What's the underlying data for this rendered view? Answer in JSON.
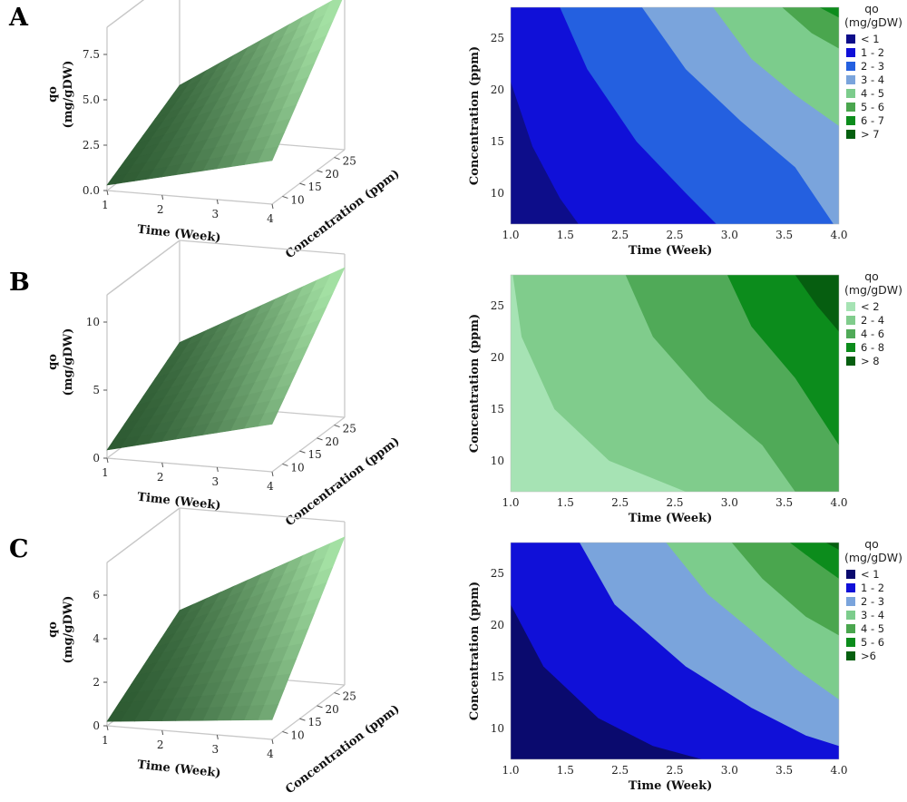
{
  "panels": [
    {
      "letter": "A",
      "zlabel_line1": "qo",
      "zlabel_line2": "(mg/gDW)",
      "xlabel": "Time (Week)",
      "ylabel": "Concentration (ppm)"
    },
    {
      "letter": "B",
      "zlabel_line1": "qo",
      "zlabel_line2": "(mg/gDW)",
      "xlabel": "Time (Week)",
      "ylabel": "Concentration (ppm)"
    },
    {
      "letter": "C",
      "zlabel_line1": "qo",
      "zlabel_line2": "(mg/gDW)",
      "xlabel": "Time (Week)",
      "ylabel": "Concentration (ppm)"
    }
  ],
  "colors": {
    "surface_dark": "#2d5a32",
    "surface_light": "#a3e0a3",
    "box": "#c8c8c8"
  },
  "chart_data": [
    {
      "type": "surface",
      "panel": "A",
      "xlabel": "Time (Week)",
      "ylabel": "Concentration (ppm)",
      "zlabel": "qo (mg/gDW)",
      "x_ticks": [
        "1",
        "2",
        "3",
        "4"
      ],
      "y_ticks": [
        "10",
        "15",
        "20",
        "25"
      ],
      "z_ticks": [
        "0.0",
        "2.5",
        "5.0",
        "7.5"
      ],
      "xlim": [
        1,
        4
      ],
      "ylim": [
        7,
        28
      ],
      "zlim": [
        0,
        9
      ],
      "corners": {
        "x1_y7": 0.3,
        "x4_y7": 2.4,
        "x1_y28": 2.8,
        "x4_y28": 8.6
      }
    },
    {
      "type": "contour",
      "panel": "A",
      "xlabel": "Time (Week)",
      "ylabel": "Concentration (ppm)",
      "legend_title": [
        "qo",
        "(mg/gDW)"
      ],
      "x_ticks": [
        "1.0",
        "1.5",
        "2.5",
        "2.5",
        "3.0",
        "3.5",
        "4.0"
      ],
      "y_ticks": [
        "10",
        "15",
        "20",
        "25"
      ],
      "xlim": [
        1,
        4
      ],
      "ylim": [
        7,
        28
      ],
      "levels": [
        {
          "label": "< 1",
          "color": "#0d0d8a"
        },
        {
          "label": "1 - 2",
          "color": "#1010d8"
        },
        {
          "label": "2 - 3",
          "color": "#2460e0"
        },
        {
          "label": "3 - 4",
          "color": "#7aa4dc"
        },
        {
          "label": "4 - 5",
          "color": "#7ccc8c"
        },
        {
          "label": "5 - 6",
          "color": "#4aa64e"
        },
        {
          "label": "6 - 7",
          "color": "#0c8c1c"
        },
        {
          "label": "> 7",
          "color": "#066010"
        }
      ],
      "boundaries": [
        [
          [
            1.0,
            20.8
          ],
          [
            1.2,
            14.5
          ],
          [
            1.45,
            9.5
          ],
          [
            1.62,
            7.0
          ]
        ],
        [
          [
            1.45,
            28
          ],
          [
            1.7,
            22
          ],
          [
            2.15,
            15
          ],
          [
            2.6,
            10
          ],
          [
            2.88,
            7.0
          ]
        ],
        [
          [
            2.2,
            28
          ],
          [
            2.6,
            22
          ],
          [
            3.1,
            17
          ],
          [
            3.6,
            12.5
          ],
          [
            3.95,
            7.0
          ]
        ],
        [
          [
            2.85,
            28
          ],
          [
            3.2,
            23
          ],
          [
            3.6,
            19.5
          ],
          [
            4.0,
            16.5
          ]
        ],
        [
          [
            3.48,
            28
          ],
          [
            3.75,
            25.5
          ],
          [
            4.0,
            24.0
          ]
        ],
        [
          [
            3.82,
            28
          ],
          [
            4.0,
            27.0
          ]
        ]
      ]
    },
    {
      "type": "surface",
      "panel": "B",
      "xlabel": "Time (Week)",
      "ylabel": "Concentration (ppm)",
      "zlabel": "qo (mg/gDW)",
      "x_ticks": [
        "1",
        "2",
        "3",
        "4"
      ],
      "y_ticks": [
        "10",
        "15",
        "20",
        "25"
      ],
      "z_ticks": [
        "0",
        "5",
        "10"
      ],
      "xlim": [
        1,
        4
      ],
      "ylim": [
        7,
        28
      ],
      "zlim": [
        0,
        12
      ],
      "corners": {
        "x1_y7": 0.6,
        "x4_y7": 3.5,
        "x1_y28": 4.5,
        "x4_y28": 11.0
      }
    },
    {
      "type": "contour",
      "panel": "B",
      "xlabel": "Time (Week)",
      "ylabel": "Concentration (ppm)",
      "legend_title": [
        "qo",
        "(mg/gDW)"
      ],
      "x_ticks": [
        "1.0",
        "1.5",
        "2.5",
        "2.5",
        "3.0",
        "3.5",
        "4.0"
      ],
      "y_ticks": [
        "10",
        "15",
        "20",
        "25"
      ],
      "xlim": [
        1,
        4
      ],
      "ylim": [
        7,
        28
      ],
      "levels": [
        {
          "label": "< 2",
          "color": "#a6e3b4"
        },
        {
          "label": "2 - 4",
          "color": "#80cc8c"
        },
        {
          "label": "4 - 6",
          "color": "#50aa58"
        },
        {
          "label": "6 - 8",
          "color": "#0c8c1c"
        },
        {
          "label": "> 8",
          "color": "#065e10"
        }
      ],
      "boundaries": [
        [
          [
            1.02,
            28
          ],
          [
            1.1,
            22
          ],
          [
            1.4,
            15
          ],
          [
            1.9,
            10
          ],
          [
            2.6,
            7.0
          ]
        ],
        [
          [
            2.05,
            28
          ],
          [
            2.3,
            22
          ],
          [
            2.8,
            16
          ],
          [
            3.3,
            11.5
          ],
          [
            3.6,
            7.0
          ]
        ],
        [
          [
            2.98,
            28
          ],
          [
            3.2,
            23
          ],
          [
            3.6,
            18
          ],
          [
            4.0,
            11.5
          ]
        ],
        [
          [
            3.6,
            28
          ],
          [
            3.8,
            25
          ],
          [
            4.0,
            22.5
          ]
        ]
      ]
    },
    {
      "type": "surface",
      "panel": "C",
      "xlabel": "Time (Week)",
      "ylabel": "Concentration (ppm)",
      "zlabel": "qo (mg/gDW)",
      "x_ticks": [
        "1",
        "2",
        "3",
        "4"
      ],
      "y_ticks": [
        "10",
        "15",
        "20",
        "25"
      ],
      "z_ticks": [
        "0",
        "2",
        "4",
        "6"
      ],
      "xlim": [
        1,
        4
      ],
      "ylim": [
        7,
        28
      ],
      "zlim": [
        0,
        7.5
      ],
      "corners": {
        "x1_y7": 0.2,
        "x4_y7": 0.9,
        "x1_y28": 2.8,
        "x4_y28": 6.8
      }
    },
    {
      "type": "contour",
      "panel": "C",
      "xlabel": "Time (Week)",
      "ylabel": "Concentration (ppm)",
      "legend_title": [
        "qo",
        "(mg/gDW)"
      ],
      "x_ticks": [
        "1.0",
        "1.5",
        "2.5",
        "2.5",
        "3.0",
        "3.5",
        "4.0"
      ],
      "y_ticks": [
        "10",
        "15",
        "20",
        "25"
      ],
      "xlim": [
        1,
        4
      ],
      "ylim": [
        7,
        28
      ],
      "levels": [
        {
          "label": "< 1",
          "color": "#0a0a6e"
        },
        {
          "label": "1 - 2",
          "color": "#1010d8"
        },
        {
          "label": "2 - 3",
          "color": "#7aa4dc"
        },
        {
          "label": "3 - 4",
          "color": "#7ccc8c"
        },
        {
          "label": "4 - 5",
          "color": "#4aa64e"
        },
        {
          "label": "5 - 6",
          "color": "#0c8c1c"
        },
        {
          "label": ">6",
          "color": "#066010"
        }
      ],
      "boundaries": [
        [
          [
            1.0,
            22
          ],
          [
            1.3,
            16
          ],
          [
            1.8,
            11
          ],
          [
            2.3,
            8.3
          ],
          [
            2.75,
            7.0
          ]
        ],
        [
          [
            1.63,
            28
          ],
          [
            1.95,
            22
          ],
          [
            2.6,
            16
          ],
          [
            3.2,
            12
          ],
          [
            3.7,
            9.3
          ],
          [
            4.0,
            8.3
          ]
        ],
        [
          [
            2.42,
            28
          ],
          [
            2.8,
            23
          ],
          [
            3.2,
            19.5
          ],
          [
            3.6,
            15.8
          ],
          [
            4.0,
            12.8
          ]
        ],
        [
          [
            3.02,
            28
          ],
          [
            3.3,
            24.5
          ],
          [
            3.7,
            20.8
          ],
          [
            4.0,
            19.0
          ]
        ],
        [
          [
            3.55,
            28
          ],
          [
            3.8,
            26
          ],
          [
            4.0,
            24.5
          ]
        ],
        [
          [
            3.88,
            28
          ],
          [
            4.0,
            27.3
          ]
        ]
      ]
    }
  ]
}
